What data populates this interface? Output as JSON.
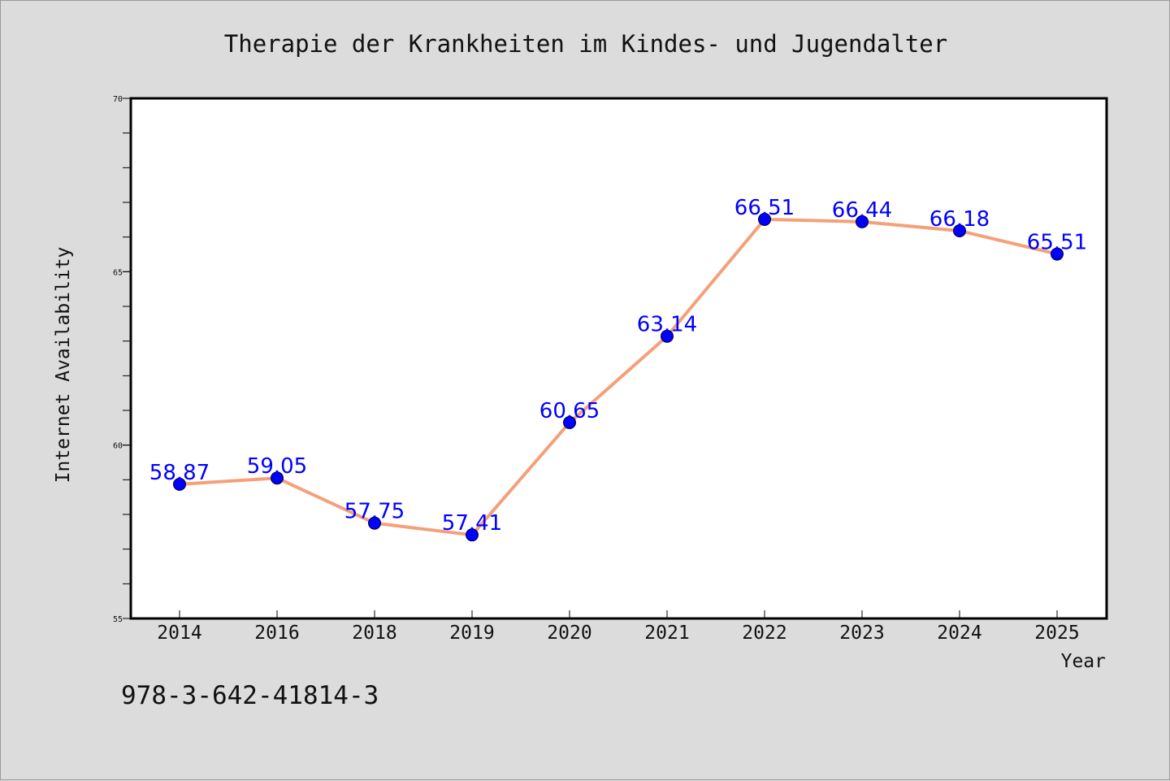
{
  "chart_data": {
    "type": "line",
    "title": "Therapie der Krankheiten im Kindes- und Jugendalter",
    "xlabel": "Year",
    "ylabel": "Internet Availability",
    "categories": [
      "2014",
      "2016",
      "2018",
      "2019",
      "2020",
      "2021",
      "2022",
      "2023",
      "2024",
      "2025"
    ],
    "series": [
      {
        "values": [
          58.87,
          59.05,
          57.75,
          57.41,
          60.65,
          63.14,
          66.51,
          66.44,
          66.18,
          65.51
        ],
        "labels": [
          "58.87",
          "59.05",
          "57.75",
          "57.41",
          "60.65",
          "63.14",
          "66.51",
          "66.44",
          "66.18",
          "65.51"
        ],
        "line_color": "#f4a07a",
        "marker_color": "#0000ff"
      }
    ],
    "ylim": [
      55,
      70
    ],
    "yticks": [
      "55",
      "60",
      "65",
      "70"
    ],
    "grid": false,
    "legend": "none"
  },
  "footer_text": "978-3-642-41814-3",
  "colors": {
    "background": "#dcdcdc",
    "plot_background": "#ffffff",
    "axis": "#000000"
  }
}
